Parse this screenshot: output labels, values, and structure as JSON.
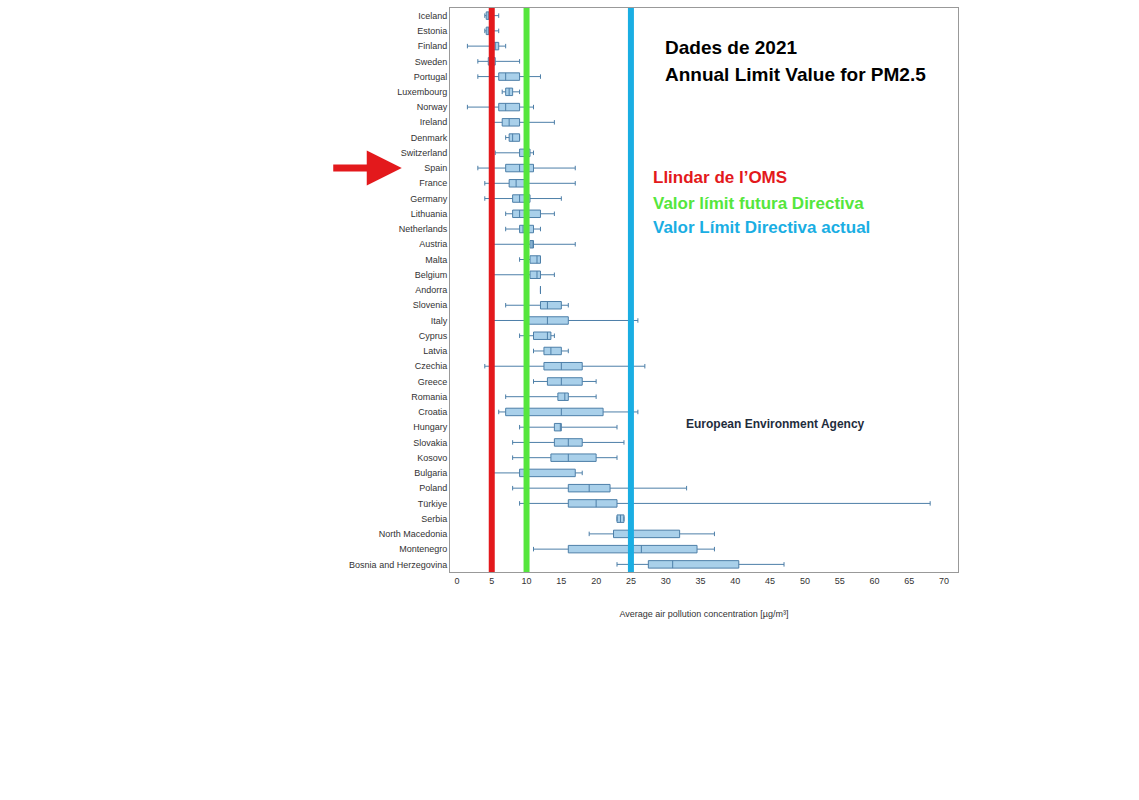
{
  "chart_data": {
    "type": "box",
    "orientation": "horizontal",
    "annotations": [
      "Dades de 2021",
      "Annual Limit Value for PM2.5",
      "European Environment Agency"
    ],
    "x_label": "Average air pollution concentration [µg/m³]",
    "categories": [
      "Iceland",
      "Estonia",
      "Finland",
      "Sweden",
      "Portugal",
      "Luxembourg",
      "Norway",
      "Ireland",
      "Denmark",
      "Switzerland",
      "Spain",
      "France",
      "Germany",
      "Lithuania",
      "Netherlands",
      "Austria",
      "Malta",
      "Belgium",
      "Andorra",
      "Slovenia",
      "Italy",
      "Cyprus",
      "Latvia",
      "Czechia",
      "Greece",
      "Romania",
      "Croatia",
      "Hungary",
      "Slovakia",
      "Kosovo",
      "Bulgaria",
      "Poland",
      "Türkiye",
      "Serbia",
      "North Macedonia",
      "Montenegro",
      "Bosnia and Herzegovina"
    ],
    "min": [
      4,
      4,
      1.5,
      3,
      3,
      6.5,
      1.5,
      5,
      7,
      5.5,
      3,
      4,
      4,
      7,
      7,
      5,
      9,
      5,
      12,
      7,
      5,
      9,
      11,
      4,
      11,
      7,
      6,
      9,
      8,
      8,
      5,
      8,
      9,
      23,
      19,
      11,
      23
    ],
    "q1": [
      4.2,
      4.2,
      5,
      4.5,
      6,
      7,
      6,
      6.5,
      7.5,
      9,
      7,
      7.5,
      8,
      8,
      9,
      10.5,
      10.5,
      10.5,
      12,
      12,
      10,
      11,
      12.5,
      12.5,
      13,
      14.5,
      7,
      14,
      14,
      13.5,
      9,
      16,
      16,
      23,
      22.5,
      16,
      27.5
    ],
    "median": [
      4.5,
      4.5,
      5.5,
      5,
      7,
      7.5,
      7,
      7.5,
      8,
      10,
      9,
      8.5,
      9,
      9,
      9.5,
      10.8,
      11.5,
      11.5,
      12,
      13,
      13,
      13,
      13.5,
      15,
      15,
      15.5,
      15,
      15,
      16,
      16,
      10,
      19,
      20,
      23.5,
      25,
      26.5,
      31
    ],
    "q3": [
      5,
      5,
      6,
      5.5,
      9,
      8,
      9,
      9,
      9,
      10.5,
      11,
      10,
      10.5,
      12,
      11,
      11,
      12,
      12,
      12,
      15,
      16,
      13.5,
      15,
      18,
      18,
      16,
      21,
      15,
      18,
      20,
      17,
      22,
      23,
      24,
      32,
      34.5,
      40.5
    ],
    "max": [
      6,
      6,
      7,
      9,
      12,
      9,
      11,
      14,
      9,
      11,
      17,
      17,
      15,
      14,
      12,
      17,
      12,
      14,
      12,
      16,
      26,
      14,
      16,
      27,
      20,
      20,
      26,
      23,
      24,
      23,
      18,
      33,
      68,
      24,
      37,
      37,
      47
    ],
    "color": "#a9d0ea",
    "reference_lines": [
      {
        "value": 5,
        "label": "Llindar de l’OMS",
        "color": "#e3191c"
      },
      {
        "value": 10,
        "label": "Valor límit futura Directiva",
        "color": "#55e63c"
      },
      {
        "value": 25,
        "label": "Valor Límit Directiva actual",
        "color": "#1aaee3"
      }
    ],
    "xlim": [
      -1,
      72
    ],
    "xticks": [
      0,
      5,
      10,
      15,
      20,
      25,
      30,
      35,
      40,
      45,
      50,
      55,
      60,
      65,
      70
    ],
    "grid": false
  }
}
